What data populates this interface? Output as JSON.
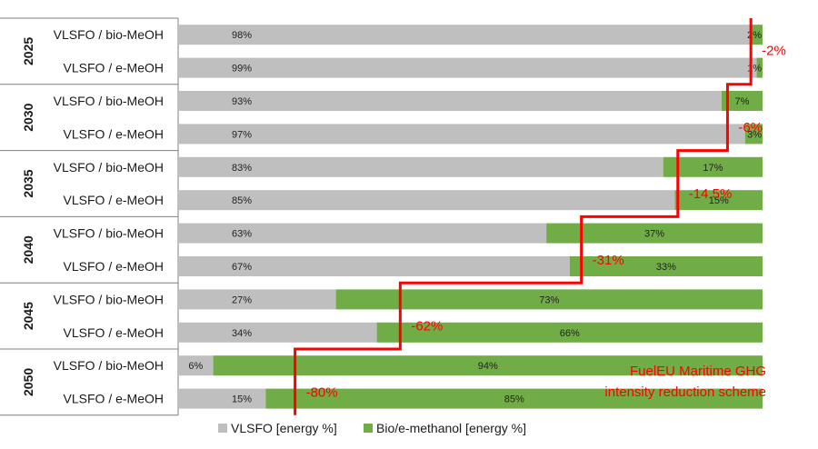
{
  "chart_data": {
    "type": "bar",
    "orientation": "horizontal",
    "stacked": true,
    "categories": [
      {
        "year": "2025",
        "label": "VLSFO / bio-MeOH"
      },
      {
        "year": "2025",
        "label": "VLSFO / e-MeOH"
      },
      {
        "year": "2030",
        "label": "VLSFO / bio-MeOH"
      },
      {
        "year": "2030",
        "label": "VLSFO / e-MeOH"
      },
      {
        "year": "2035",
        "label": "VLSFO / bio-MeOH"
      },
      {
        "year": "2035",
        "label": "VLSFO / e-MeOH"
      },
      {
        "year": "2040",
        "label": "VLSFO / bio-MeOH"
      },
      {
        "year": "2040",
        "label": "VLSFO / e-MeOH"
      },
      {
        "year": "2045",
        "label": "VLSFO / bio-MeOH"
      },
      {
        "year": "2045",
        "label": "VLSFO / e-MeOH"
      },
      {
        "year": "2050",
        "label": "VLSFO / bio-MeOH"
      },
      {
        "year": "2050",
        "label": "VLSFO / e-MeOH"
      }
    ],
    "years": [
      "2025",
      "2030",
      "2035",
      "2040",
      "2045",
      "2050"
    ],
    "series": [
      {
        "name": "VLSFO [energy %]",
        "color": "#bfbfbf",
        "values": [
          98,
          99,
          93,
          97,
          83,
          85,
          63,
          67,
          27,
          34,
          6,
          15
        ],
        "labels": [
          "98%",
          "99%",
          "93%",
          "97%",
          "83%",
          "85%",
          "63%",
          "67%",
          "27%",
          "34%",
          "6%",
          "15%"
        ]
      },
      {
        "name": "Bio/e-methanol [energy %]",
        "color": "#70ad47",
        "values": [
          2,
          1,
          7,
          3,
          17,
          15,
          37,
          33,
          73,
          66,
          94,
          85
        ],
        "labels": [
          "2%",
          "1%",
          "7%",
          "3%",
          "17%",
          "15%",
          "37%",
          "33%",
          "73%",
          "66%",
          "94%",
          "85%"
        ]
      }
    ],
    "xlim": [
      0,
      100
    ],
    "reduction_line": {
      "color": "#ff0000",
      "steps": [
        {
          "year": "2025",
          "value": 2,
          "label": "-2%"
        },
        {
          "year": "2030",
          "value": 6,
          "label": "-6%"
        },
        {
          "year": "2035",
          "value": 14.5,
          "label": "-14.5%"
        },
        {
          "year": "2040",
          "value": 31,
          "label": "-31%"
        },
        {
          "year": "2045",
          "value": 62,
          "label": "-62%"
        },
        {
          "year": "2050",
          "value": 80,
          "label": "-80%"
        }
      ]
    },
    "annotation": {
      "lines": [
        "FuelEU Maritime GHG",
        "intensity reduction scheme"
      ],
      "color": "#ff0000"
    },
    "legend": {
      "placement": "bottom"
    }
  }
}
